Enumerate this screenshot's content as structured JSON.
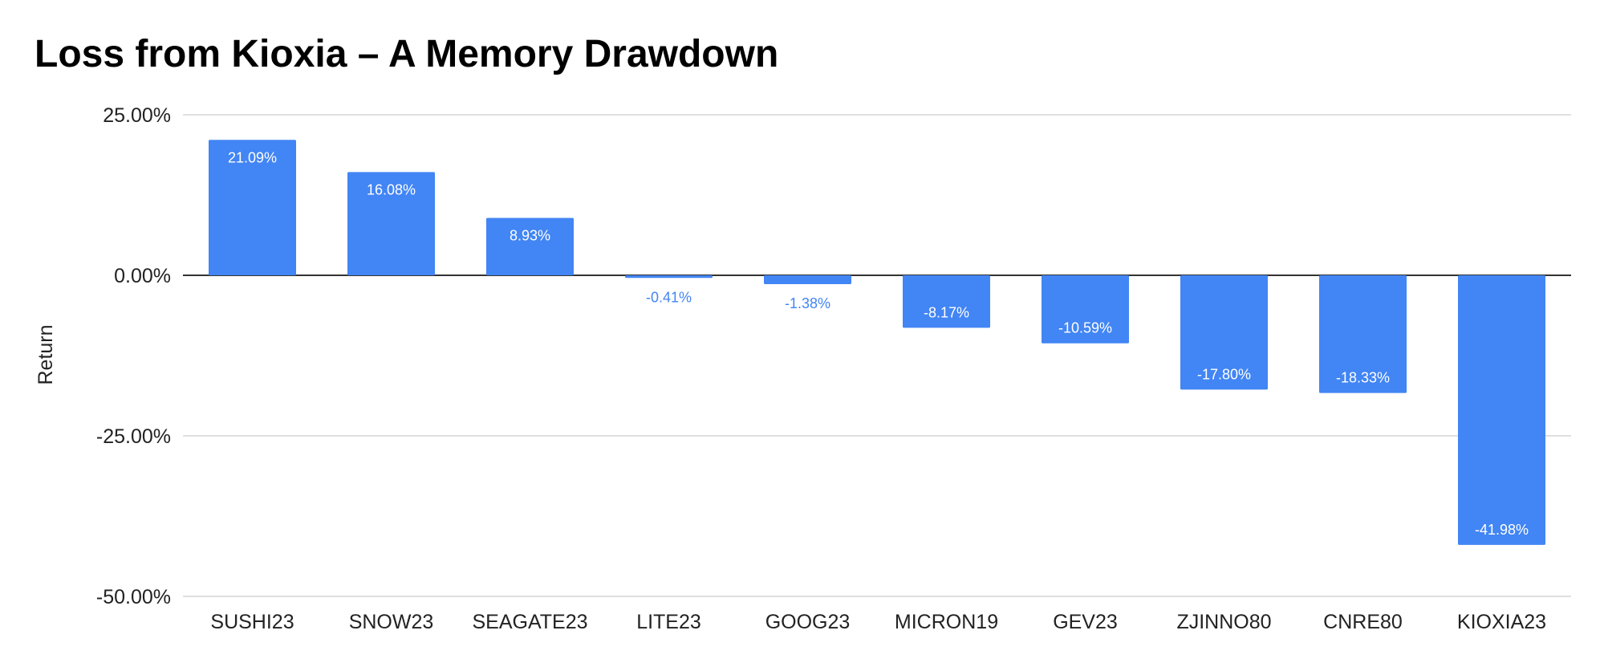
{
  "chart_data": {
    "type": "bar",
    "title": "Loss from Kioxia – A Memory Drawdown",
    "xlabel": "",
    "ylabel": "Return",
    "categories": [
      "SUSHI23",
      "SNOW23",
      "SEAGATE23",
      "LITE23",
      "GOOG23",
      "MICRON19",
      "GEV23",
      "ZJINNO80",
      "CNRE80",
      "KIOXIA23"
    ],
    "values": [
      21.09,
      16.08,
      8.93,
      -0.41,
      -1.38,
      -8.17,
      -10.59,
      -17.8,
      -18.33,
      -41.98
    ],
    "data_labels": [
      "21.09%",
      "16.08%",
      "8.93%",
      "-0.41%",
      "-1.38%",
      "-8.17%",
      "-10.59%",
      "-17.80%",
      "-18.33%",
      "-41.98%"
    ],
    "yticks": [
      25,
      0,
      -25,
      -50
    ],
    "ytick_labels": [
      "25.00%",
      "0.00%",
      "-25.00%",
      "-50.00%"
    ],
    "ylim": [
      -50,
      25
    ],
    "grid": true,
    "legend": "none",
    "bar_color": "#4285f4"
  }
}
